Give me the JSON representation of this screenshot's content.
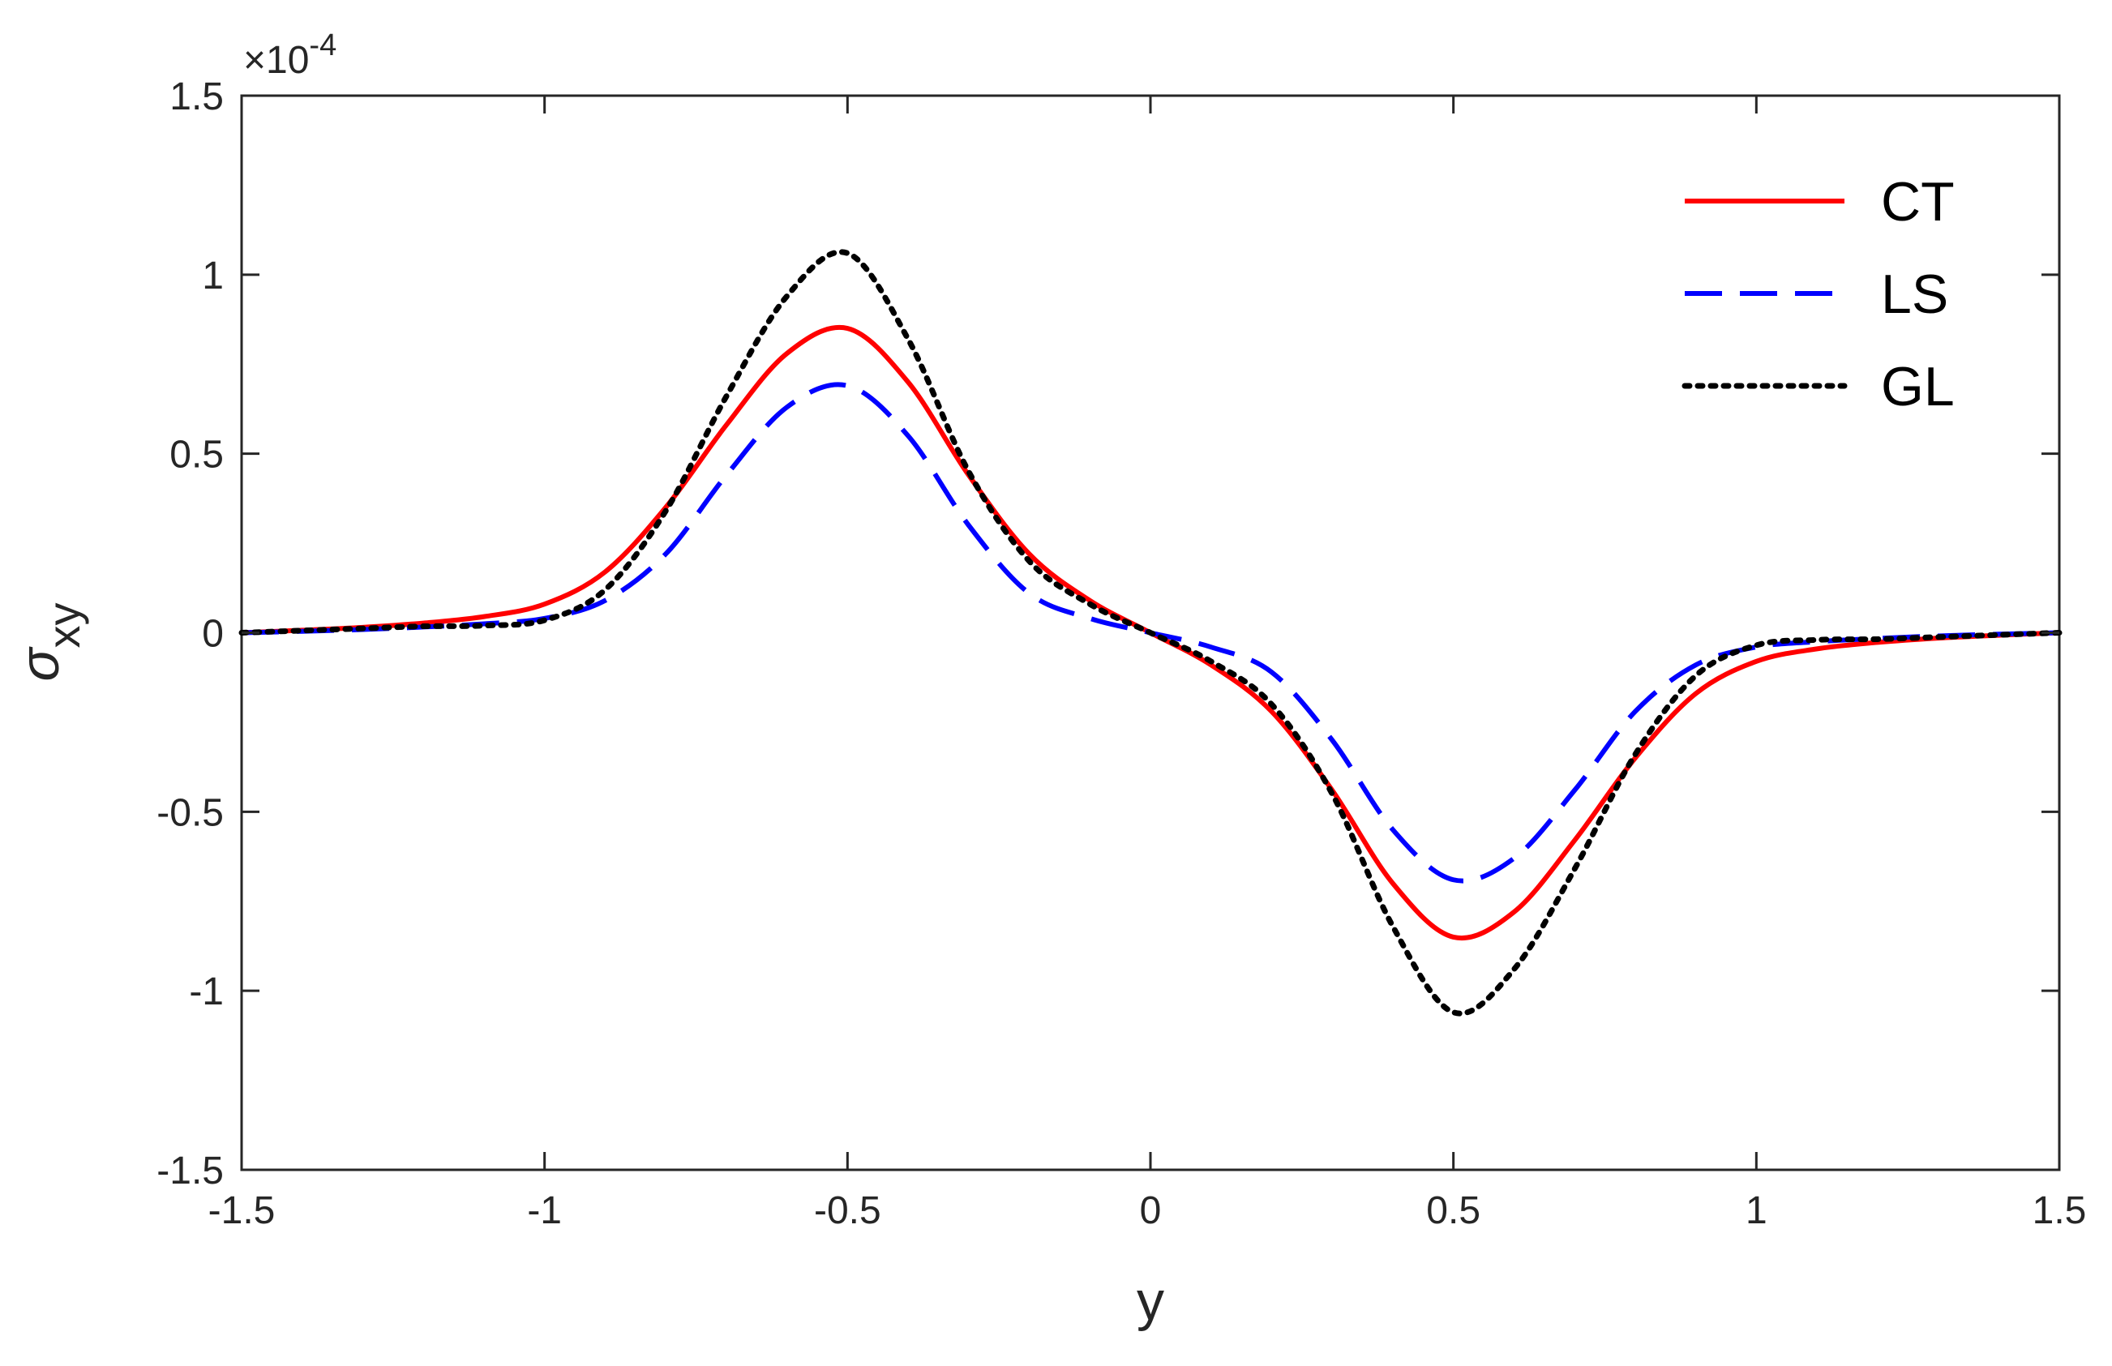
{
  "chart_data": {
    "type": "line",
    "title": "",
    "xlabel": "y",
    "ylabel_symbol": "σ",
    "ylabel_subscript": "xy",
    "xlim": [
      -1.5,
      1.5
    ],
    "ylim": [
      -1.5,
      1.5
    ],
    "y_multiplier": "×10",
    "y_multiplier_exponent": "-4",
    "grid": false,
    "legend_position": "top-right",
    "xticks": [
      {
        "value": -1.5,
        "label": "-1.5"
      },
      {
        "value": -1,
        "label": "-1"
      },
      {
        "value": -0.5,
        "label": "-0.5"
      },
      {
        "value": 0,
        "label": "0"
      },
      {
        "value": 0.5,
        "label": "0.5"
      },
      {
        "value": 1,
        "label": "1"
      },
      {
        "value": 1.5,
        "label": "1.5"
      }
    ],
    "yticks": [
      {
        "value": -1.5,
        "label": "-1.5"
      },
      {
        "value": -1,
        "label": "-1"
      },
      {
        "value": -0.5,
        "label": "-0.5"
      },
      {
        "value": 0,
        "label": "0"
      },
      {
        "value": 0.5,
        "label": "0.5"
      },
      {
        "value": 1,
        "label": "1"
      },
      {
        "value": 1.5,
        "label": "1.5"
      }
    ],
    "series": [
      {
        "name": "CT",
        "color": "#ff0000",
        "dash": "solid",
        "x": [
          -1.5,
          -1.4,
          -1.3,
          -1.2,
          -1.1,
          -1.0,
          -0.9,
          -0.8,
          -0.7,
          -0.6,
          -0.5,
          -0.4,
          -0.3,
          -0.2,
          -0.1,
          0.0,
          0.1,
          0.2,
          0.3,
          0.4,
          0.5,
          0.6,
          0.7,
          0.8,
          0.9,
          1.0,
          1.1,
          1.2,
          1.3,
          1.4,
          1.5
        ],
        "y": [
          0.0,
          0.007,
          0.015,
          0.027,
          0.045,
          0.08,
          0.17,
          0.35,
          0.58,
          0.78,
          0.85,
          0.7,
          0.44,
          0.22,
          0.09,
          0.0,
          -0.09,
          -0.22,
          -0.44,
          -0.7,
          -0.85,
          -0.78,
          -0.58,
          -0.35,
          -0.17,
          -0.08,
          -0.045,
          -0.027,
          -0.015,
          -0.007,
          0.0
        ]
      },
      {
        "name": "LS",
        "color": "#0000ff",
        "dash": "dashed",
        "x": [
          -1.5,
          -1.4,
          -1.3,
          -1.2,
          -1.1,
          -1.0,
          -0.9,
          -0.8,
          -0.7,
          -0.6,
          -0.5,
          -0.4,
          -0.3,
          -0.2,
          -0.1,
          0.0,
          0.1,
          0.2,
          0.3,
          0.4,
          0.5,
          0.6,
          0.7,
          0.8,
          0.9,
          1.0,
          1.1,
          1.2,
          1.3,
          1.4,
          1.5
        ],
        "y": [
          0.0,
          0.004,
          0.009,
          0.016,
          0.025,
          0.04,
          0.09,
          0.22,
          0.44,
          0.63,
          0.69,
          0.55,
          0.3,
          0.11,
          0.04,
          0.0,
          -0.04,
          -0.11,
          -0.3,
          -0.55,
          -0.69,
          -0.63,
          -0.44,
          -0.22,
          -0.09,
          -0.04,
          -0.025,
          -0.016,
          -0.009,
          -0.004,
          0.0
        ]
      },
      {
        "name": "GL",
        "color": "#000000",
        "dash": "dotted",
        "x": [
          -1.5,
          -1.4,
          -1.3,
          -1.2,
          -1.1,
          -1.0,
          -0.9,
          -0.8,
          -0.7,
          -0.6,
          -0.5,
          -0.4,
          -0.3,
          -0.2,
          -0.1,
          0.0,
          0.1,
          0.2,
          0.3,
          0.4,
          0.5,
          0.6,
          0.7,
          0.8,
          0.9,
          1.0,
          1.1,
          1.2,
          1.3,
          1.4,
          1.5
        ],
        "y": [
          0.0,
          0.006,
          0.012,
          0.018,
          0.02,
          0.035,
          0.12,
          0.34,
          0.66,
          0.94,
          1.06,
          0.82,
          0.45,
          0.2,
          0.08,
          0.0,
          -0.08,
          -0.2,
          -0.45,
          -0.82,
          -1.06,
          -0.94,
          -0.66,
          -0.34,
          -0.12,
          -0.035,
          -0.02,
          -0.018,
          -0.012,
          -0.006,
          0.0
        ]
      }
    ]
  }
}
